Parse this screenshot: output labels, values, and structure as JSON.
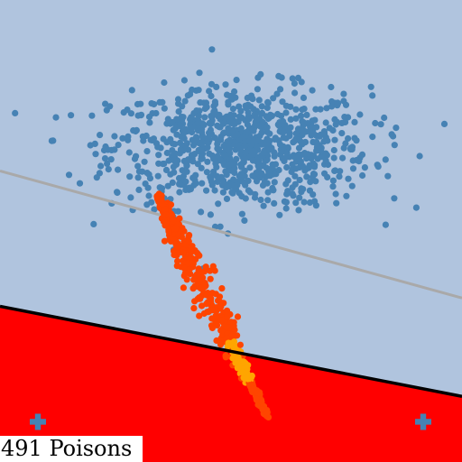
{
  "caption": "491 Poisons",
  "chart_data": {
    "type": "scatter",
    "title": "",
    "xlabel": "",
    "ylabel": "",
    "grid": false,
    "legend": "none",
    "xlim": [
      0,
      1
    ],
    "ylim": [
      0,
      1
    ],
    "colors": {
      "background": "#b0c4de",
      "negative_region": "#ff0000",
      "clean_points": "#4682b4",
      "poison_points_outer": "#ff4500",
      "poison_points_inner": "#ffa500",
      "clean_boundary": "#a9a9a9",
      "poisoned_boundary": "#000000"
    },
    "clean_boundary": {
      "p1": [
        0.0,
        0.63
      ],
      "p2": [
        1.0,
        0.355
      ]
    },
    "poisoned_boundary": {
      "p1": [
        0.0,
        0.337
      ],
      "p2": [
        1.0,
        0.142
      ]
    },
    "clean_cluster": {
      "center": [
        0.52,
        0.68
      ],
      "spread": [
        0.14,
        0.065
      ],
      "count": 900
    },
    "poison_points": {
      "start": [
        0.34,
        0.58
      ],
      "end": [
        0.58,
        0.095
      ],
      "count": 491
    },
    "class_markers": [
      {
        "symbol": "plus",
        "x": 0.082,
        "y": 0.087
      },
      {
        "symbol": "plus",
        "x": 0.916,
        "y": 0.087
      }
    ]
  }
}
